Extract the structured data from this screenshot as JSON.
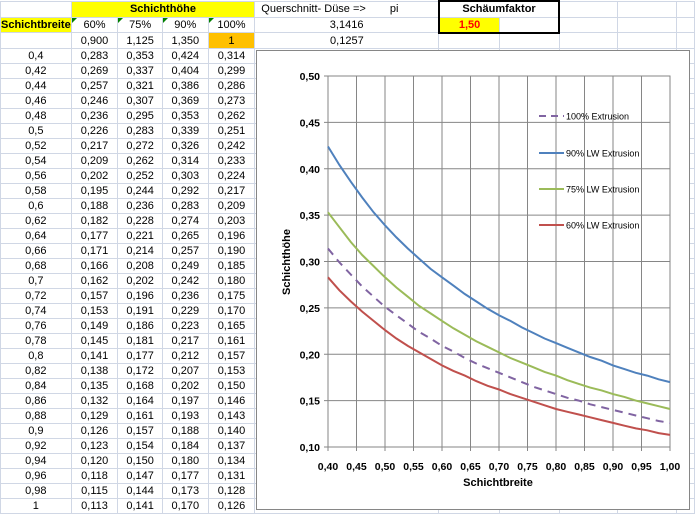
{
  "header": {
    "schichthoehe": "Schichthöhe",
    "schichtbreite": "Schichtbreite",
    "percent_labels": [
      "60%",
      "75%",
      "90%",
      "100%"
    ],
    "factors": [
      "0,900",
      "1,125",
      "1,350",
      "1"
    ],
    "querschnitt_label": "Querschnitt- Düse =>",
    "pi_label": "pi",
    "pi_value": "3,1416",
    "querschnitt_value": "0,1257",
    "schaeumfaktor_label": "Schäumfaktor",
    "schaeumfaktor_value": "1,50"
  },
  "rows": [
    [
      "0,4",
      "0,283",
      "0,353",
      "0,424",
      "0,314"
    ],
    [
      "0,42",
      "0,269",
      "0,337",
      "0,404",
      "0,299"
    ],
    [
      "0,44",
      "0,257",
      "0,321",
      "0,386",
      "0,286"
    ],
    [
      "0,46",
      "0,246",
      "0,307",
      "0,369",
      "0,273"
    ],
    [
      "0,48",
      "0,236",
      "0,295",
      "0,353",
      "0,262"
    ],
    [
      "0,5",
      "0,226",
      "0,283",
      "0,339",
      "0,251"
    ],
    [
      "0,52",
      "0,217",
      "0,272",
      "0,326",
      "0,242"
    ],
    [
      "0,54",
      "0,209",
      "0,262",
      "0,314",
      "0,233"
    ],
    [
      "0,56",
      "0,202",
      "0,252",
      "0,303",
      "0,224"
    ],
    [
      "0,58",
      "0,195",
      "0,244",
      "0,292",
      "0,217"
    ],
    [
      "0,6",
      "0,188",
      "0,236",
      "0,283",
      "0,209"
    ],
    [
      "0,62",
      "0,182",
      "0,228",
      "0,274",
      "0,203"
    ],
    [
      "0,64",
      "0,177",
      "0,221",
      "0,265",
      "0,196"
    ],
    [
      "0,66",
      "0,171",
      "0,214",
      "0,257",
      "0,190"
    ],
    [
      "0,68",
      "0,166",
      "0,208",
      "0,249",
      "0,185"
    ],
    [
      "0,7",
      "0,162",
      "0,202",
      "0,242",
      "0,180"
    ],
    [
      "0,72",
      "0,157",
      "0,196",
      "0,236",
      "0,175"
    ],
    [
      "0,74",
      "0,153",
      "0,191",
      "0,229",
      "0,170"
    ],
    [
      "0,76",
      "0,149",
      "0,186",
      "0,223",
      "0,165"
    ],
    [
      "0,78",
      "0,145",
      "0,181",
      "0,217",
      "0,161"
    ],
    [
      "0,8",
      "0,141",
      "0,177",
      "0,212",
      "0,157"
    ],
    [
      "0,82",
      "0,138",
      "0,172",
      "0,207",
      "0,153"
    ],
    [
      "0,84",
      "0,135",
      "0,168",
      "0,202",
      "0,150"
    ],
    [
      "0,86",
      "0,132",
      "0,164",
      "0,197",
      "0,146"
    ],
    [
      "0,88",
      "0,129",
      "0,161",
      "0,193",
      "0,143"
    ],
    [
      "0,9",
      "0,126",
      "0,157",
      "0,188",
      "0,140"
    ],
    [
      "0,92",
      "0,123",
      "0,154",
      "0,184",
      "0,137"
    ],
    [
      "0,94",
      "0,120",
      "0,150",
      "0,180",
      "0,134"
    ],
    [
      "0,96",
      "0,118",
      "0,147",
      "0,177",
      "0,131"
    ],
    [
      "0,98",
      "0,115",
      "0,144",
      "0,173",
      "0,128"
    ],
    [
      "1",
      "0,113",
      "0,141",
      "0,170",
      "0,126"
    ]
  ],
  "chart_data": {
    "type": "line",
    "title": "",
    "xlabel": "Schichtbreite",
    "ylabel": "Schichthöhe",
    "xlim": [
      0.4,
      1.0
    ],
    "ylim": [
      0.1,
      0.5
    ],
    "grid": true,
    "legend_position": "top-right",
    "x_ticks": [
      "0,40",
      "0,45",
      "0,50",
      "0,55",
      "0,60",
      "0,65",
      "0,70",
      "0,75",
      "0,80",
      "0,85",
      "0,90",
      "0,95",
      "1,00"
    ],
    "y_ticks": [
      "0,10",
      "0,15",
      "0,20",
      "0,25",
      "0,30",
      "0,35",
      "0,40",
      "0,45",
      "0,50"
    ],
    "x": [
      0.4,
      0.42,
      0.44,
      0.46,
      0.48,
      0.5,
      0.52,
      0.54,
      0.56,
      0.58,
      0.6,
      0.62,
      0.64,
      0.66,
      0.68,
      0.7,
      0.72,
      0.74,
      0.76,
      0.78,
      0.8,
      0.82,
      0.84,
      0.86,
      0.88,
      0.9,
      0.92,
      0.94,
      0.96,
      0.98,
      1.0
    ],
    "series": [
      {
        "name": "100% Extrusion",
        "color": "#8064A2",
        "dashed": true,
        "values": [
          0.314,
          0.299,
          0.286,
          0.273,
          0.262,
          0.251,
          0.242,
          0.233,
          0.224,
          0.217,
          0.209,
          0.203,
          0.196,
          0.19,
          0.185,
          0.18,
          0.175,
          0.17,
          0.165,
          0.161,
          0.157,
          0.153,
          0.15,
          0.146,
          0.143,
          0.14,
          0.137,
          0.134,
          0.131,
          0.128,
          0.126
        ]
      },
      {
        "name": "90% LW Extrusion",
        "color": "#4F81BD",
        "dashed": false,
        "values": [
          0.424,
          0.404,
          0.386,
          0.369,
          0.353,
          0.339,
          0.326,
          0.314,
          0.303,
          0.292,
          0.283,
          0.274,
          0.265,
          0.257,
          0.249,
          0.242,
          0.236,
          0.229,
          0.223,
          0.217,
          0.212,
          0.207,
          0.202,
          0.197,
          0.193,
          0.188,
          0.184,
          0.18,
          0.177,
          0.173,
          0.17
        ]
      },
      {
        "name": "75% LW Extrusion",
        "color": "#9BBB59",
        "dashed": false,
        "values": [
          0.353,
          0.337,
          0.321,
          0.307,
          0.295,
          0.283,
          0.272,
          0.262,
          0.252,
          0.244,
          0.236,
          0.228,
          0.221,
          0.214,
          0.208,
          0.202,
          0.196,
          0.191,
          0.186,
          0.181,
          0.177,
          0.172,
          0.168,
          0.164,
          0.161,
          0.157,
          0.154,
          0.15,
          0.147,
          0.144,
          0.141
        ]
      },
      {
        "name": "60% LW Extrusion",
        "color": "#C0504D",
        "dashed": false,
        "values": [
          0.283,
          0.269,
          0.257,
          0.246,
          0.236,
          0.226,
          0.217,
          0.209,
          0.202,
          0.195,
          0.188,
          0.182,
          0.177,
          0.171,
          0.166,
          0.162,
          0.157,
          0.153,
          0.149,
          0.145,
          0.141,
          0.138,
          0.135,
          0.132,
          0.129,
          0.126,
          0.123,
          0.12,
          0.118,
          0.115,
          0.113
        ]
      }
    ]
  }
}
